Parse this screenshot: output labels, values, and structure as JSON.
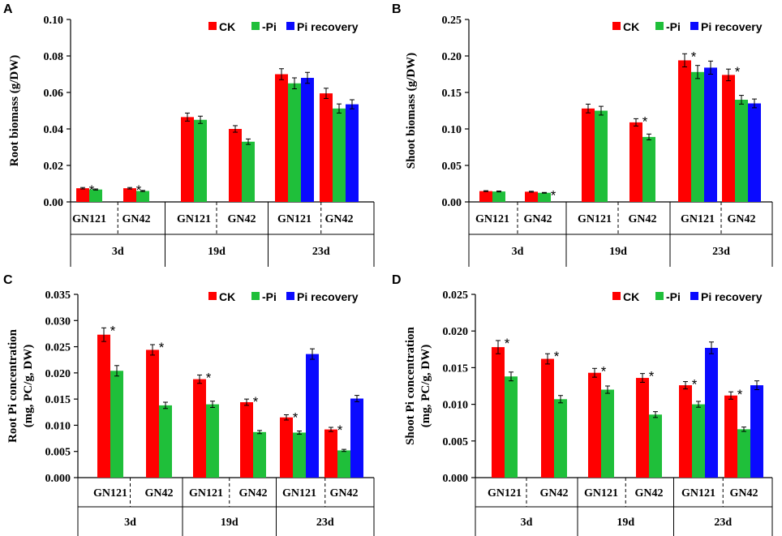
{
  "colors": {
    "CK": "#ff0000",
    "-Pi": "#1fbf3a",
    "Pi recovery": "#0a0aff"
  },
  "chart_data": [
    {
      "panel": "A",
      "type": "bar",
      "ylabel": "Root  biomass (g/DW)",
      "ylim": [
        0,
        0.1
      ],
      "yticks": [
        "0.00",
        "0.02",
        "0.04",
        "0.06",
        "0.08",
        "0.10"
      ],
      "legend": [
        "CK",
        "-Pi",
        "Pi recovery"
      ],
      "groups": [
        {
          "cultivar": "GN121",
          "time": "3d",
          "bars": [
            {
              "series": "CK",
              "value": 0.0075,
              "err": 0.0004,
              "sig": "*"
            },
            {
              "series": "-Pi",
              "value": 0.0068,
              "err": 0.0003,
              "sig": ""
            }
          ]
        },
        {
          "cultivar": "GN42",
          "time": "3d",
          "bars": [
            {
              "series": "CK",
              "value": 0.0075,
              "err": 0.0004,
              "sig": "*"
            },
            {
              "series": "-Pi",
              "value": 0.006,
              "err": 0.0003,
              "sig": ""
            }
          ]
        },
        {
          "cultivar": "GN121",
          "time": "19d",
          "bars": [
            {
              "series": "CK",
              "value": 0.0465,
              "err": 0.0022,
              "sig": ""
            },
            {
              "series": "-Pi",
              "value": 0.045,
              "err": 0.002,
              "sig": ""
            }
          ]
        },
        {
          "cultivar": "GN42",
          "time": "19d",
          "bars": [
            {
              "series": "CK",
              "value": 0.04,
              "err": 0.0018,
              "sig": ""
            },
            {
              "series": "-Pi",
              "value": 0.033,
              "err": 0.0015,
              "sig": ""
            }
          ]
        },
        {
          "cultivar": "GN121",
          "time": "23d",
          "bars": [
            {
              "series": "CK",
              "value": 0.07,
              "err": 0.003,
              "sig": ""
            },
            {
              "series": "-Pi",
              "value": 0.065,
              "err": 0.003,
              "sig": ""
            },
            {
              "series": "Pi recovery",
              "value": 0.068,
              "err": 0.003,
              "sig": ""
            }
          ]
        },
        {
          "cultivar": "GN42",
          "time": "23d",
          "bars": [
            {
              "series": "CK",
              "value": 0.0595,
              "err": 0.0028,
              "sig": ""
            },
            {
              "series": "-Pi",
              "value": 0.0512,
              "err": 0.0025,
              "sig": ""
            },
            {
              "series": "Pi recovery",
              "value": 0.0535,
              "err": 0.0025,
              "sig": ""
            }
          ]
        }
      ]
    },
    {
      "panel": "B",
      "type": "bar",
      "ylabel": "Shoot  biomass (g/DW)",
      "ylim": [
        0,
        0.25
      ],
      "yticks": [
        "0.00",
        "0.05",
        "0.10",
        "0.15",
        "0.20",
        "0.25"
      ],
      "legend": [
        "CK",
        "-Pi",
        "Pi recovery"
      ],
      "groups": [
        {
          "cultivar": "GN121",
          "time": "3d",
          "bars": [
            {
              "series": "CK",
              "value": 0.0148,
              "err": 0.0006,
              "sig": ""
            },
            {
              "series": "-Pi",
              "value": 0.0143,
              "err": 0.0006,
              "sig": ""
            }
          ]
        },
        {
          "cultivar": "GN42",
          "time": "3d",
          "bars": [
            {
              "series": "CK",
              "value": 0.014,
              "err": 0.0006,
              "sig": ""
            },
            {
              "series": "-Pi",
              "value": 0.0125,
              "err": 0.0005,
              "sig": "*"
            }
          ]
        },
        {
          "cultivar": "GN121",
          "time": "19d",
          "bars": [
            {
              "series": "CK",
              "value": 0.128,
              "err": 0.006,
              "sig": ""
            },
            {
              "series": "-Pi",
              "value": 0.125,
              "err": 0.006,
              "sig": ""
            }
          ]
        },
        {
          "cultivar": "GN42",
          "time": "19d",
          "bars": [
            {
              "series": "CK",
              "value": 0.109,
              "err": 0.005,
              "sig": "*"
            },
            {
              "series": "-Pi",
              "value": 0.089,
              "err": 0.004,
              "sig": ""
            }
          ]
        },
        {
          "cultivar": "GN121",
          "time": "23d",
          "bars": [
            {
              "series": "CK",
              "value": 0.194,
              "err": 0.009,
              "sig": "*"
            },
            {
              "series": "-Pi",
              "value": 0.178,
              "err": 0.009,
              "sig": ""
            },
            {
              "series": "Pi recovery",
              "value": 0.184,
              "err": 0.009,
              "sig": ""
            }
          ]
        },
        {
          "cultivar": "GN42",
          "time": "23d",
          "bars": [
            {
              "series": "CK",
              "value": 0.174,
              "err": 0.008,
              "sig": "*"
            },
            {
              "series": "-Pi",
              "value": 0.14,
              "err": 0.006,
              "sig": ""
            },
            {
              "series": "Pi recovery",
              "value": 0.135,
              "err": 0.006,
              "sig": ""
            }
          ]
        }
      ]
    },
    {
      "panel": "C",
      "type": "bar",
      "ylabel": [
        "Root  Pi  concentration",
        "(mg, PC/g, DW)"
      ],
      "ylim": [
        0,
        0.035
      ],
      "yticks": [
        "0.000",
        "0.005",
        "0.010",
        "0.015",
        "0.020",
        "0.025",
        "0.030",
        "0.035"
      ],
      "legend": [
        "CK",
        "-Pi",
        "Pi recovery"
      ],
      "groups": [
        {
          "cultivar": "GN121",
          "time": "3d",
          "bars": [
            {
              "series": "CK",
              "value": 0.0273,
              "err": 0.0013,
              "sig": "*"
            },
            {
              "series": "-Pi",
              "value": 0.0204,
              "err": 0.001,
              "sig": ""
            }
          ]
        },
        {
          "cultivar": "GN42",
          "time": "3d",
          "bars": [
            {
              "series": "CK",
              "value": 0.0244,
              "err": 0.001,
              "sig": "*"
            },
            {
              "series": "-Pi",
              "value": 0.0138,
              "err": 0.0006,
              "sig": ""
            }
          ]
        },
        {
          "cultivar": "GN121",
          "time": "19d",
          "bars": [
            {
              "series": "CK",
              "value": 0.0188,
              "err": 0.0008,
              "sig": "*"
            },
            {
              "series": "-Pi",
              "value": 0.014,
              "err": 0.0006,
              "sig": ""
            }
          ]
        },
        {
          "cultivar": "GN42",
          "time": "19d",
          "bars": [
            {
              "series": "CK",
              "value": 0.0144,
              "err": 0.0006,
              "sig": "*"
            },
            {
              "series": "-Pi",
              "value": 0.0087,
              "err": 0.0003,
              "sig": ""
            }
          ]
        },
        {
          "cultivar": "GN121",
          "time": "23d",
          "bars": [
            {
              "series": "CK",
              "value": 0.0115,
              "err": 0.0005,
              "sig": "*"
            },
            {
              "series": "-Pi",
              "value": 0.0086,
              "err": 0.0003,
              "sig": ""
            },
            {
              "series": "Pi recovery",
              "value": 0.0236,
              "err": 0.001,
              "sig": ""
            }
          ]
        },
        {
          "cultivar": "GN42",
          "time": "23d",
          "bars": [
            {
              "series": "CK",
              "value": 0.0092,
              "err": 0.0004,
              "sig": "*"
            },
            {
              "series": "-Pi",
              "value": 0.0052,
              "err": 0.0002,
              "sig": ""
            },
            {
              "series": "Pi recovery",
              "value": 0.0151,
              "err": 0.0006,
              "sig": ""
            }
          ]
        }
      ]
    },
    {
      "panel": "D",
      "type": "bar",
      "ylabel": [
        "Shoot  Pi  concentration",
        "(mg, PC/g, DW)"
      ],
      "ylim": [
        0,
        0.025
      ],
      "yticks": [
        "0.000",
        "0.005",
        "0.010",
        "0.015",
        "0.020",
        "0.025"
      ],
      "legend": [
        "CK",
        "-Pi",
        "Pi recovery"
      ],
      "groups": [
        {
          "cultivar": "GN121",
          "time": "3d",
          "bars": [
            {
              "series": "CK",
              "value": 0.0178,
              "err": 0.0009,
              "sig": "*"
            },
            {
              "series": "-Pi",
              "value": 0.0138,
              "err": 0.0006,
              "sig": ""
            }
          ]
        },
        {
          "cultivar": "GN42",
          "time": "3d",
          "bars": [
            {
              "series": "CK",
              "value": 0.0162,
              "err": 0.0007,
              "sig": "*"
            },
            {
              "series": "-Pi",
              "value": 0.0107,
              "err": 0.0005,
              "sig": ""
            }
          ]
        },
        {
          "cultivar": "GN121",
          "time": "19d",
          "bars": [
            {
              "series": "CK",
              "value": 0.0143,
              "err": 0.0006,
              "sig": "*"
            },
            {
              "series": "-Pi",
              "value": 0.012,
              "err": 0.0005,
              "sig": ""
            }
          ]
        },
        {
          "cultivar": "GN42",
          "time": "19d",
          "bars": [
            {
              "series": "CK",
              "value": 0.0136,
              "err": 0.0006,
              "sig": "*"
            },
            {
              "series": "-Pi",
              "value": 0.0086,
              "err": 0.0004,
              "sig": ""
            }
          ]
        },
        {
          "cultivar": "GN121",
          "time": "23d",
          "bars": [
            {
              "series": "CK",
              "value": 0.0126,
              "err": 0.0005,
              "sig": "*"
            },
            {
              "series": "-Pi",
              "value": 0.01,
              "err": 0.0004,
              "sig": ""
            },
            {
              "series": "Pi recovery",
              "value": 0.0177,
              "err": 0.0008,
              "sig": ""
            }
          ]
        },
        {
          "cultivar": "GN42",
          "time": "23d",
          "bars": [
            {
              "series": "CK",
              "value": 0.0112,
              "err": 0.0005,
              "sig": "*"
            },
            {
              "series": "-Pi",
              "value": 0.0066,
              "err": 0.0003,
              "sig": ""
            },
            {
              "series": "Pi recovery",
              "value": 0.0126,
              "err": 0.0006,
              "sig": ""
            }
          ]
        }
      ]
    }
  ]
}
